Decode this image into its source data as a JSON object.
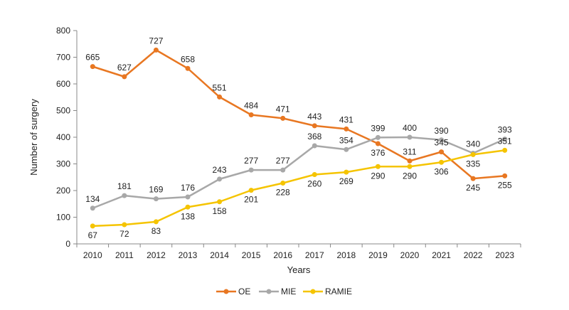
{
  "chart_data": {
    "type": "line",
    "xlabel": "Years",
    "ylabel": "Number of surgery",
    "ylim": [
      0,
      800
    ],
    "yticks": [
      0,
      100,
      200,
      300,
      400,
      500,
      600,
      700,
      800
    ],
    "categories": [
      "2010",
      "2011",
      "2012",
      "2013",
      "2014",
      "2015",
      "2016",
      "2017",
      "2018",
      "2019",
      "2020",
      "2021",
      "2022",
      "2023"
    ],
    "grid": false,
    "legend_position": "bottom",
    "series": [
      {
        "name": "OE",
        "color": "#E87722",
        "values": [
          665,
          627,
          727,
          658,
          551,
          484,
          471,
          443,
          431,
          376,
          311,
          345,
          245,
          255
        ],
        "label_pos": [
          "above",
          "above",
          "above",
          "above",
          "above",
          "above",
          "above",
          "above",
          "above",
          "below",
          "above",
          "above",
          "below",
          "below"
        ]
      },
      {
        "name": "MIE",
        "color": "#A8A8A8",
        "values": [
          134,
          181,
          169,
          176,
          243,
          277,
          277,
          368,
          354,
          399,
          400,
          390,
          340,
          393
        ],
        "label_pos": [
          "above",
          "above",
          "above",
          "above",
          "above",
          "above",
          "above",
          "above",
          "above",
          "above",
          "above",
          "above",
          "above",
          "above"
        ]
      },
      {
        "name": "RAMIE",
        "color": "#F5C400",
        "values": [
          67,
          72,
          83,
          138,
          158,
          201,
          228,
          260,
          269,
          290,
          290,
          306,
          335,
          351
        ],
        "label_pos": [
          "below",
          "below",
          "below",
          "below",
          "below",
          "below",
          "below",
          "below",
          "below",
          "below",
          "below",
          "below",
          "below",
          "above"
        ]
      }
    ]
  }
}
